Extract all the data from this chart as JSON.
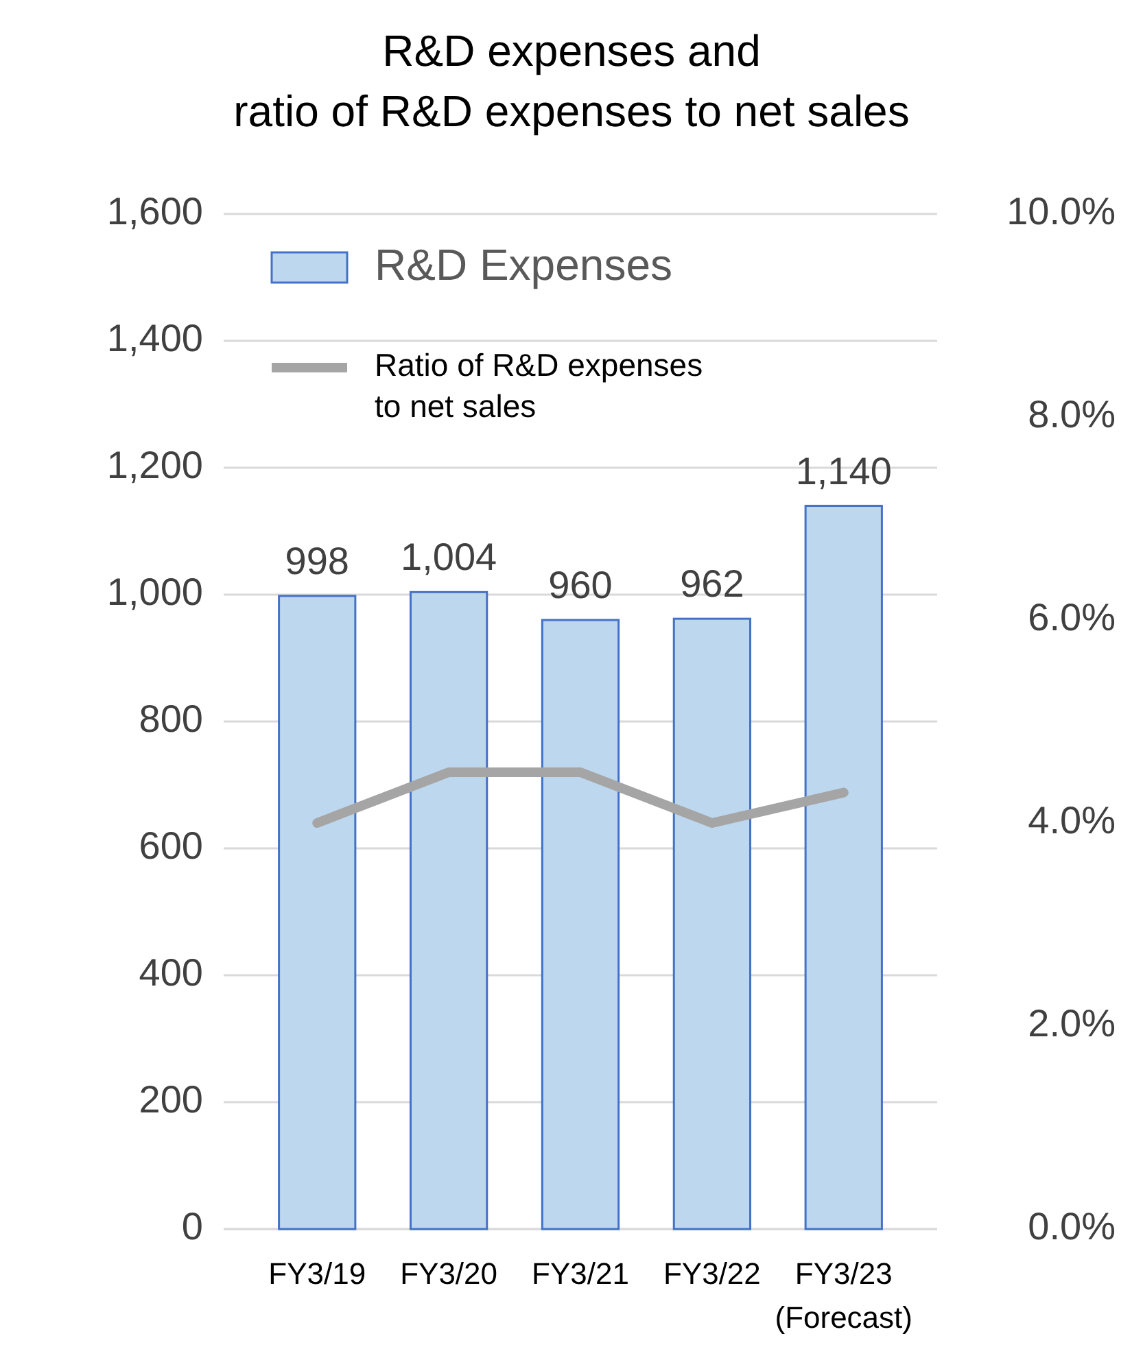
{
  "chart_data": {
    "type": "bar",
    "title": "R&D expenses and\nratio of R&D expenses to net sales",
    "categories": [
      "FY3/19",
      "FY3/20",
      "FY3/21",
      "FY3/22",
      "FY3/23\n(Forecast)"
    ],
    "series": [
      {
        "name": "R&D Expenses",
        "color": "#bdd7ee",
        "values": [
          998,
          1004,
          960,
          962,
          1140
        ],
        "value_labels": [
          "998",
          "1,004",
          "960",
          "962",
          "1,140"
        ]
      },
      {
        "name": "Ratio of R&D expenses\nto net sales",
        "type": "line",
        "axis": "y2",
        "color": "#a5a5a5",
        "values": [
          4.0,
          4.5,
          4.5,
          4.0,
          4.3
        ]
      }
    ],
    "ylim": [
      0,
      1600
    ],
    "yticks": [
      0,
      200,
      400,
      600,
      800,
      {
        "value": 1000,
        "label": "1,000"
      },
      {
        "value": 1200,
        "label": "1,200"
      },
      {
        "value": 1400,
        "label": "1,400"
      },
      {
        "value": 1600,
        "label": "1,600"
      }
    ],
    "y2lim": [
      0,
      10
    ],
    "y2ticks": [
      {
        "value": 0,
        "label": "0.0%"
      },
      {
        "value": 2,
        "label": "2.0%"
      },
      {
        "value": 4,
        "label": "4.0%"
      },
      {
        "value": 6,
        "label": "6.0%"
      },
      {
        "value": 8,
        "label": "8.0%"
      },
      {
        "value": 10,
        "label": "10.0%"
      }
    ],
    "grid": "y",
    "legend": "top left",
    "marker": "none",
    "line_style": "solid"
  }
}
